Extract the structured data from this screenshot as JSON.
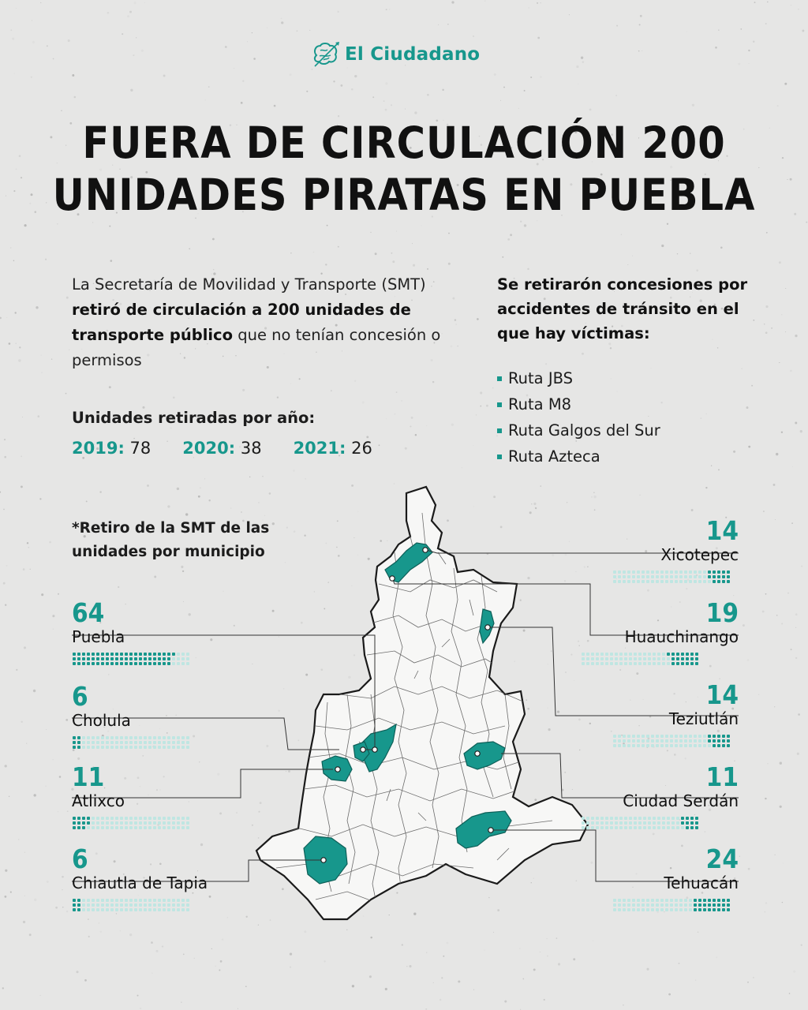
{
  "logo": {
    "text": "El Ciudadano"
  },
  "title": {
    "line1": "FUERA DE CIRCULACIÓN 200",
    "line2": "UNIDADES PIRATAS EN PUEBLA"
  },
  "intro": {
    "p1": "La Secretaría de Movilidad y Transporte (SMT) ",
    "p2": "retiró de circulación a 200 unidades de transporte público",
    "p3": " que no tenían concesión o permisos"
  },
  "per_year": {
    "title": "Unidades retiradas por año:",
    "items": [
      {
        "year": "2019:",
        "value": "78"
      },
      {
        "year": "2020:",
        "value": "38"
      },
      {
        "year": "2021:",
        "value": "26"
      }
    ]
  },
  "concessions": {
    "title": "Se retirarón  concesiones por accidentes de tránsito en el que hay víctimas:",
    "routes": [
      "Ruta JBS",
      "Ruta M8",
      "Ruta Galgos del Sur",
      "Ruta Azteca"
    ]
  },
  "municipal_note": "*Retiro de la SMT de las unidades por municipio",
  "colors": {
    "accent": "#17978c",
    "accent_light": "#bfe6e2",
    "background": "#e6e6e5"
  },
  "map_legend_scale": {
    "dots_total": 75
  },
  "municipalities_left": [
    {
      "name": "Puebla",
      "value": "64"
    },
    {
      "name": "Cholula",
      "value": "6"
    },
    {
      "name": "Atlixco",
      "value": "11"
    },
    {
      "name": "Chiautla de Tapia",
      "value": "6"
    }
  ],
  "municipalities_right": [
    {
      "name": "Xicotepec",
      "value": "14"
    },
    {
      "name": "Huauchinango",
      "value": "19"
    },
    {
      "name": "Teziutlán",
      "value": "14"
    },
    {
      "name": "Ciudad Serdán",
      "value": "11"
    },
    {
      "name": "Tehuacán",
      "value": "24"
    }
  ]
}
